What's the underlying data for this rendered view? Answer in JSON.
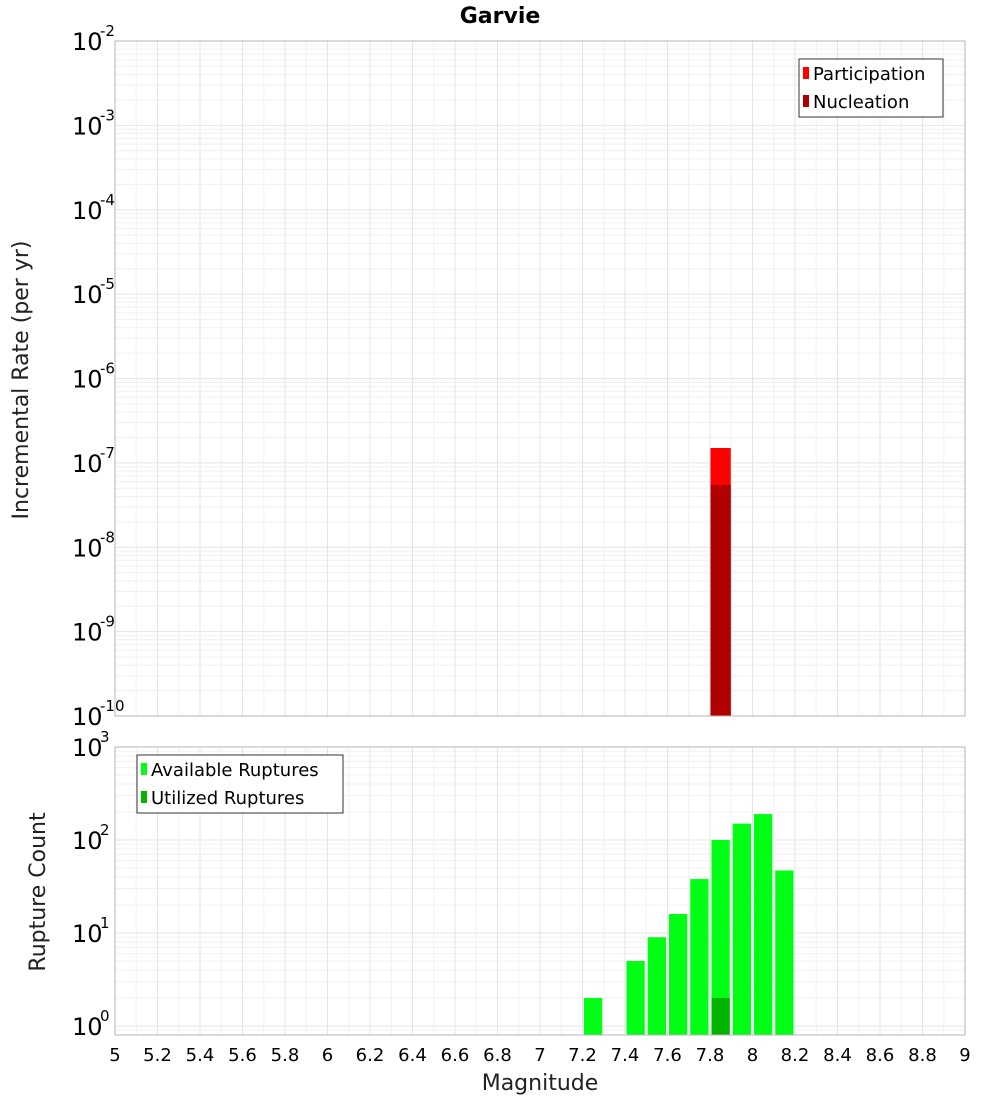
{
  "chart_data": [
    {
      "type": "bar",
      "title": "Garvie",
      "xlabel": "",
      "ylabel": "Incremental Rate (per yr)",
      "xlim": [
        5,
        9
      ],
      "ylim": [
        1e-10,
        0.01
      ],
      "yscale": "log",
      "grid": true,
      "legend_position": "top-right",
      "series": [
        {
          "name": "Participation",
          "color": "#ff0000",
          "points": [
            {
              "x": 7.85,
              "y": 1.5e-07
            }
          ]
        },
        {
          "name": "Nucleation",
          "color": "#b00000",
          "points": [
            {
              "x": 7.85,
              "y": 5.5e-08
            }
          ]
        }
      ],
      "ytick_base": "10",
      "yticks_exp": [
        "-10",
        "-9",
        "-8",
        "-7",
        "-6",
        "-5",
        "-4",
        "-3",
        "-2"
      ]
    },
    {
      "type": "bar",
      "title": "",
      "xlabel": "Magnitude",
      "ylabel": "Rupture Count",
      "xlim": [
        5,
        9
      ],
      "ylim": [
        0.8,
        1000
      ],
      "yscale": "log",
      "grid": true,
      "legend_position": "top-left",
      "series": [
        {
          "name": "Available Ruptures",
          "color": "#00ff14",
          "points": [
            {
              "x": 7.25,
              "y": 2
            },
            {
              "x": 7.45,
              "y": 5
            },
            {
              "x": 7.55,
              "y": 9
            },
            {
              "x": 7.65,
              "y": 16
            },
            {
              "x": 7.75,
              "y": 38
            },
            {
              "x": 7.85,
              "y": 100
            },
            {
              "x": 7.95,
              "y": 150
            },
            {
              "x": 8.05,
              "y": 190
            },
            {
              "x": 8.15,
              "y": 47
            }
          ]
        },
        {
          "name": "Utilized Ruptures",
          "color": "#00b400",
          "points": [
            {
              "x": 7.85,
              "y": 2
            }
          ]
        }
      ],
      "ytick_base": "10",
      "yticks_exp": [
        "0",
        "1",
        "2",
        "3"
      ],
      "xticks": [
        "5",
        "5.2",
        "5.4",
        "5.6",
        "5.8",
        "6",
        "6.2",
        "6.4",
        "6.6",
        "6.8",
        "7",
        "7.2",
        "7.4",
        "7.6",
        "7.8",
        "8",
        "8.2",
        "8.4",
        "8.6",
        "8.8",
        "9"
      ]
    }
  ],
  "colors": {
    "frame": "#b4b4b4",
    "grid_major": "#e4e4e4",
    "grid_minor": "#f0f0f0"
  }
}
